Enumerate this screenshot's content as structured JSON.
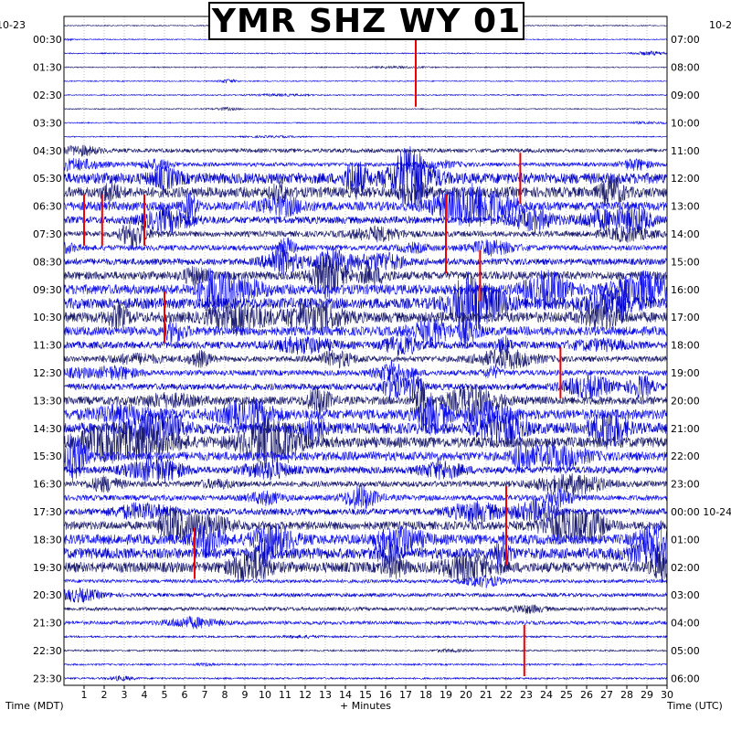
{
  "title": "YMR SHZ WY 01",
  "left_date_label": "10-23",
  "right_date_label_top": "10-2",
  "left_axis_title": "Time (MDT)",
  "right_axis_title": "Time (UTC)",
  "x_axis_title": "+ Minutes",
  "colors": {
    "trace_dark": "#1a1a6e",
    "trace_blue": "#1010ee",
    "trace_alt": "#0000cc",
    "event": "#ee0000",
    "grid": "#888888"
  },
  "chart_data": {
    "type": "helicorder",
    "title": "YMR SHZ WY 01",
    "xlabel": "+ Minutes",
    "xlim": [
      0,
      30
    ],
    "x_ticks": [
      1,
      2,
      3,
      4,
      5,
      6,
      7,
      8,
      9,
      10,
      11,
      12,
      13,
      14,
      15,
      16,
      17,
      18,
      19,
      20,
      21,
      22,
      23,
      24,
      25,
      26,
      27,
      28,
      29,
      30
    ],
    "rows_per_hour": 2,
    "row_count": 48,
    "left_time_labels": [
      "00:30",
      "01:30",
      "02:30",
      "03:30",
      "04:30",
      "05:30",
      "06:30",
      "07:30",
      "08:30",
      "09:30",
      "10:30",
      "11:30",
      "12:30",
      "13:30",
      "14:30",
      "15:30",
      "16:30",
      "17:30",
      "18:30",
      "19:30",
      "20:30",
      "21:30",
      "22:30",
      "23:30"
    ],
    "right_time_labels": [
      "07:00",
      "08:00",
      "09:00",
      "10:00",
      "11:00",
      "12:00",
      "13:00",
      "14:00",
      "15:00",
      "16:00",
      "17:00",
      "18:00",
      "19:00",
      "20:00",
      "21:00",
      "22:00",
      "23:00",
      "00:00 10-24",
      "01:00",
      "02:00",
      "03:00",
      "04:00",
      "05:00",
      "06:00"
    ],
    "event_marks": [
      {
        "row": 2,
        "minute": 17.5
      },
      {
        "row": 4,
        "minute": 17.5
      },
      {
        "row": 11,
        "minute": 22.7
      },
      {
        "row": 14,
        "minute": 1.0
      },
      {
        "row": 14,
        "minute": 1.9
      },
      {
        "row": 14,
        "minute": 4.0
      },
      {
        "row": 14,
        "minute": 19.0
      },
      {
        "row": 16,
        "minute": 19.0
      },
      {
        "row": 18,
        "minute": 20.7
      },
      {
        "row": 21,
        "minute": 5.0
      },
      {
        "row": 25,
        "minute": 24.7
      },
      {
        "row": 35,
        "minute": 22.0
      },
      {
        "row": 37,
        "minute": 22.0
      },
      {
        "row": 38,
        "minute": 6.5
      },
      {
        "row": 45,
        "minute": 22.9
      }
    ]
  }
}
